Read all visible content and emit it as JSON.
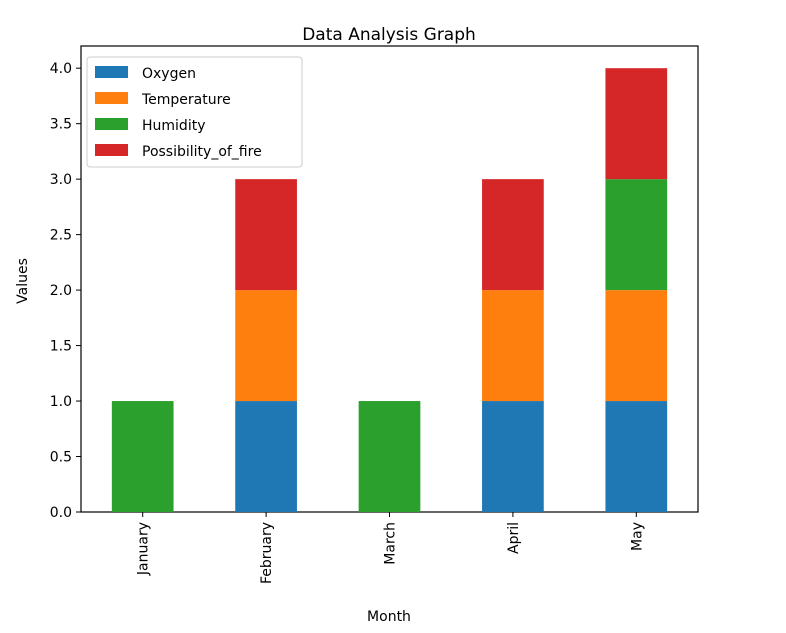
{
  "chart_data": {
    "type": "bar",
    "stacked": true,
    "title": "Data Analysis Graph",
    "xlabel": "Month",
    "ylabel": "Values",
    "categories": [
      "January",
      "February",
      "March",
      "April",
      "May"
    ],
    "series": [
      {
        "name": "Oxygen",
        "color": "#1f77b4",
        "values": [
          0,
          1,
          0,
          1,
          1
        ]
      },
      {
        "name": "Temperature",
        "color": "#ff7f0e",
        "values": [
          0,
          1,
          0,
          1,
          1
        ]
      },
      {
        "name": "Humidity",
        "color": "#2ca02c",
        "values": [
          1,
          0,
          1,
          0,
          1
        ]
      },
      {
        "name": "Possibility_of_fire",
        "color": "#d62728",
        "values": [
          0,
          1,
          0,
          1,
          1
        ]
      }
    ],
    "ylim": [
      0,
      4.2
    ],
    "yticks": [
      "0.0",
      "0.5",
      "1.0",
      "1.5",
      "2.0",
      "2.5",
      "3.0",
      "3.5",
      "4.0"
    ],
    "legend_position": "top-left",
    "grid": false
  }
}
